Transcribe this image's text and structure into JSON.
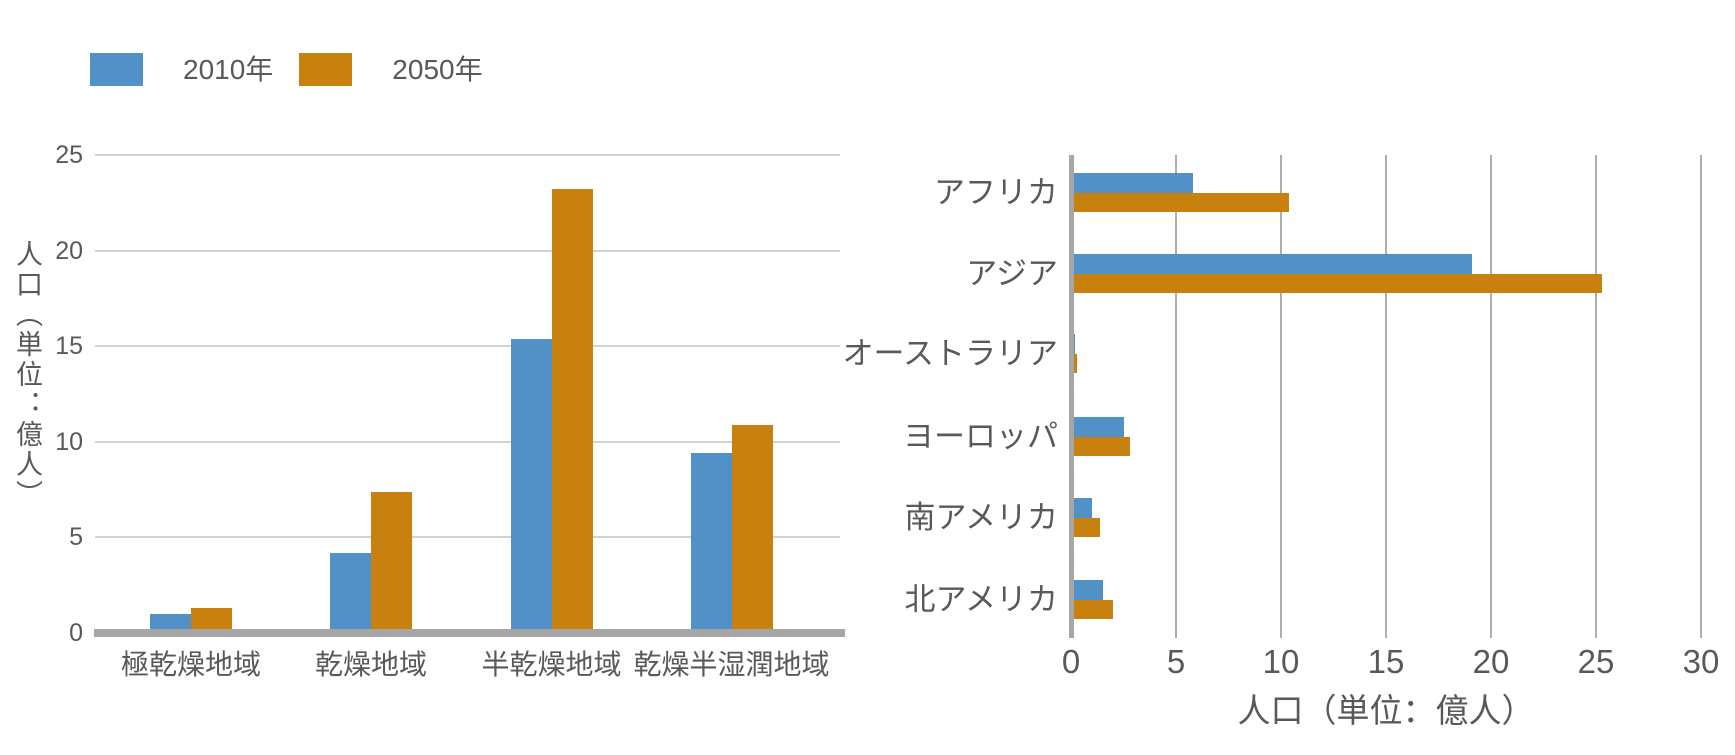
{
  "legend": {
    "items": [
      {
        "label": "2010年",
        "color": "#5290c8"
      },
      {
        "label": "2050年",
        "color": "#c8800e"
      }
    ]
  },
  "colors": {
    "series_2010": "#5290c8",
    "series_2050": "#c8800e",
    "text": "#595959",
    "grid_left": "#d2d2d2",
    "grid_right": "#adadad",
    "axis": "#a6a6a6",
    "background": "#ffffff"
  },
  "chart_data": [
    {
      "type": "bar",
      "orientation": "vertical",
      "categories": [
        "極乾燥地域",
        "乾燥地域",
        "半乾燥地域",
        "乾燥半湿潤地域"
      ],
      "series": [
        {
          "name": "2010年",
          "color": "#5290c8",
          "values": [
            1.0,
            4.2,
            15.4,
            9.4
          ]
        },
        {
          "name": "2050年",
          "color": "#c8800e",
          "values": [
            1.3,
            7.4,
            23.2,
            10.9
          ]
        }
      ],
      "ylabel": "人口（単位：億人）",
      "xlabel": "",
      "ylim": [
        0,
        25
      ],
      "yticks": [
        0,
        5,
        10,
        15,
        20,
        25
      ],
      "grid": true,
      "legend_position": "top-left"
    },
    {
      "type": "bar",
      "orientation": "horizontal",
      "categories": [
        "アフリカ",
        "アジア",
        "オーストラリア",
        "ヨーロッパ",
        "南アメリカ",
        "北アメリカ"
      ],
      "series": [
        {
          "name": "2010年",
          "color": "#5290c8",
          "values": [
            5.8,
            19.1,
            0.2,
            2.5,
            1.0,
            1.5
          ]
        },
        {
          "name": "2050年",
          "color": "#c8800e",
          "values": [
            10.4,
            25.3,
            0.3,
            2.8,
            1.4,
            2.0
          ]
        }
      ],
      "xlabel": "人口（単位：億人）",
      "ylabel": "",
      "xlim": [
        0,
        30
      ],
      "xticks": [
        0,
        5,
        10,
        15,
        20,
        25,
        30
      ],
      "grid": true,
      "legend_position": "none"
    }
  ]
}
